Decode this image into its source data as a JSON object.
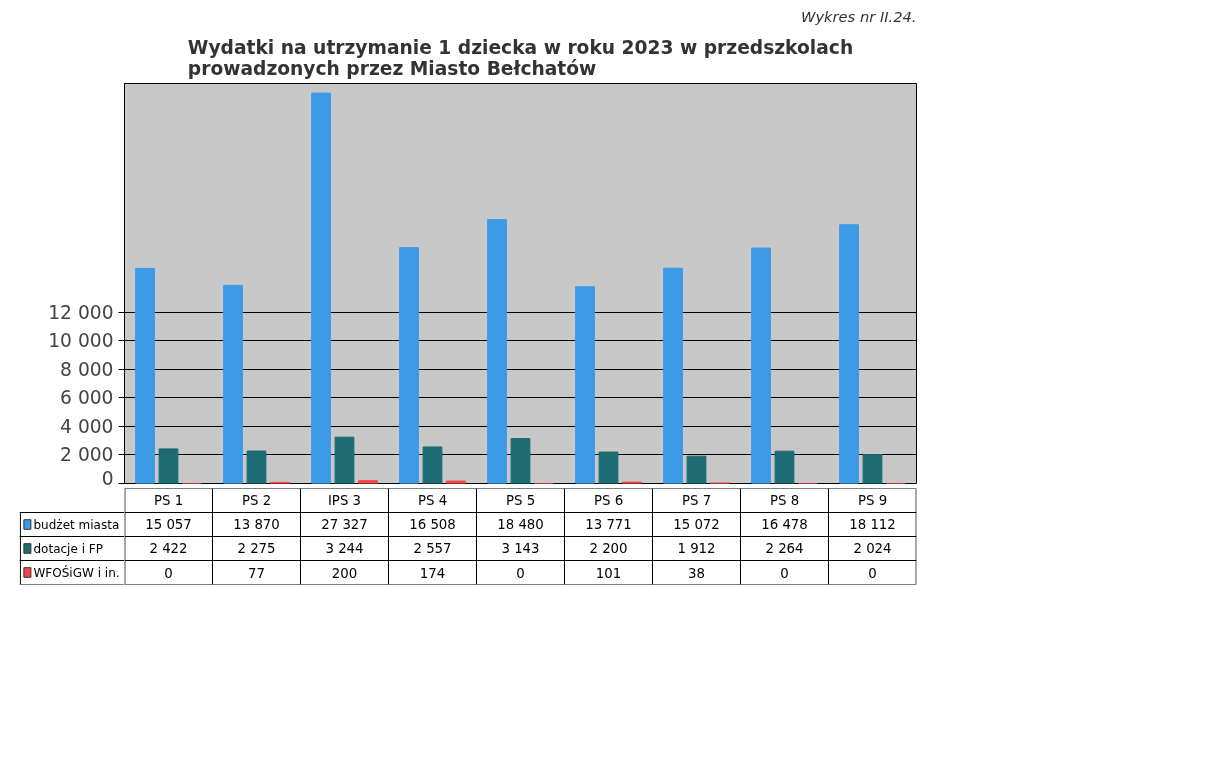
{
  "chart_data": {
    "type": "bar",
    "title": "Wydatki na utrzymanie 1 dziecka w roku 2023 w przedszkolach\nprowadzonych przez Miasto Bełchatów",
    "annotations": [
      "Wykres nr II.24."
    ],
    "categories": [
      "PS 1",
      "PS 2",
      "IPS 3",
      "PS 4",
      "PS 5",
      "PS 6",
      "PS 7",
      "PS 8",
      "PS 9"
    ],
    "series": [
      {
        "name": "budżet miasta",
        "color": "#3d9ae6",
        "values": [
          15057,
          13870,
          27327,
          16508,
          18480,
          13771,
          15072,
          16478,
          18112
        ],
        "value_labels": [
          "15 057",
          "13 870",
          "27 327",
          "16 508",
          "18 480",
          "13 771",
          "15 072",
          "16 478",
          "18 112"
        ]
      },
      {
        "name": "dotacje i FP",
        "color": "#1d6b73",
        "values": [
          2422,
          2275,
          3244,
          2557,
          3143,
          2200,
          1912,
          2264,
          2024
        ],
        "value_labels": [
          "2 422",
          "2 275",
          "3 244",
          "2 557",
          "3 143",
          "2 200",
          "1 912",
          "2 264",
          "2 024"
        ]
      },
      {
        "name": "WFOŚiGW i in.",
        "color": "#f04646",
        "values": [
          0,
          77,
          200,
          174,
          0,
          101,
          38,
          0,
          0
        ],
        "value_labels": [
          "0",
          "77",
          "200",
          "174",
          "0",
          "101",
          "38",
          "0",
          "0"
        ]
      }
    ],
    "ylim": [
      0,
      28000
    ],
    "yticks": [
      {
        "value": 0,
        "label": "0"
      },
      {
        "value": 2000,
        "label": "2 000"
      },
      {
        "value": 4000,
        "label": "4 000"
      },
      {
        "value": 6000,
        "label": "6 000"
      },
      {
        "value": 8000,
        "label": "8 000"
      },
      {
        "value": 10000,
        "label": "10 000"
      },
      {
        "value": 12000,
        "label": "12 000"
      }
    ],
    "grid": "y",
    "legend": "bottom left"
  }
}
